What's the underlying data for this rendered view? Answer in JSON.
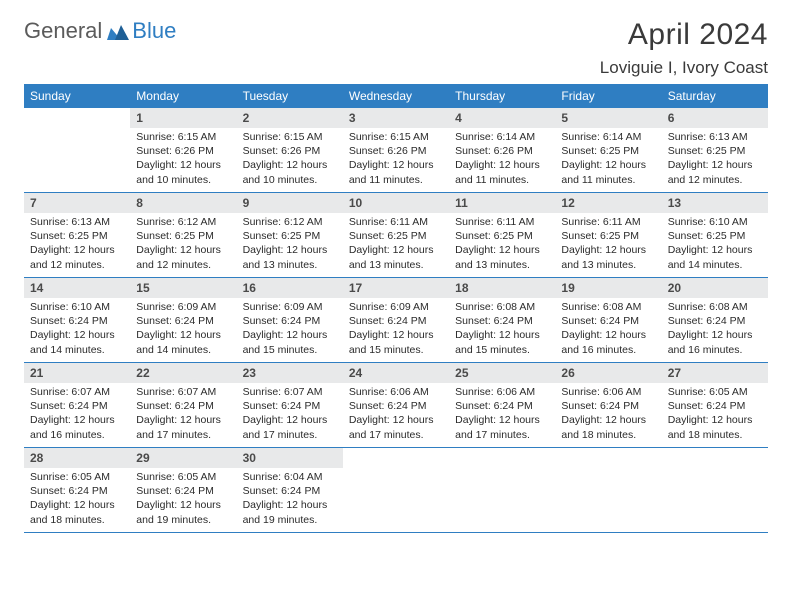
{
  "brand": {
    "part1": "General",
    "part2": "Blue",
    "color_gray": "#5b5b5b",
    "color_blue": "#2f7ec2"
  },
  "title": "April 2024",
  "location": "Loviguie I, Ivory Coast",
  "header_bg": "#2f7ec2",
  "header_text_color": "#ffffff",
  "daynum_bg": "#e8e9ea",
  "border_color": "#2f7ec2",
  "text_color": "#2b2b2b",
  "weekdays": [
    "Sunday",
    "Monday",
    "Tuesday",
    "Wednesday",
    "Thursday",
    "Friday",
    "Saturday"
  ],
  "weeks": [
    [
      {
        "n": "",
        "sunrise": "",
        "sunset": "",
        "daylight1": "",
        "daylight2": ""
      },
      {
        "n": "1",
        "sunrise": "Sunrise: 6:15 AM",
        "sunset": "Sunset: 6:26 PM",
        "daylight1": "Daylight: 12 hours",
        "daylight2": "and 10 minutes."
      },
      {
        "n": "2",
        "sunrise": "Sunrise: 6:15 AM",
        "sunset": "Sunset: 6:26 PM",
        "daylight1": "Daylight: 12 hours",
        "daylight2": "and 10 minutes."
      },
      {
        "n": "3",
        "sunrise": "Sunrise: 6:15 AM",
        "sunset": "Sunset: 6:26 PM",
        "daylight1": "Daylight: 12 hours",
        "daylight2": "and 11 minutes."
      },
      {
        "n": "4",
        "sunrise": "Sunrise: 6:14 AM",
        "sunset": "Sunset: 6:26 PM",
        "daylight1": "Daylight: 12 hours",
        "daylight2": "and 11 minutes."
      },
      {
        "n": "5",
        "sunrise": "Sunrise: 6:14 AM",
        "sunset": "Sunset: 6:25 PM",
        "daylight1": "Daylight: 12 hours",
        "daylight2": "and 11 minutes."
      },
      {
        "n": "6",
        "sunrise": "Sunrise: 6:13 AM",
        "sunset": "Sunset: 6:25 PM",
        "daylight1": "Daylight: 12 hours",
        "daylight2": "and 12 minutes."
      }
    ],
    [
      {
        "n": "7",
        "sunrise": "Sunrise: 6:13 AM",
        "sunset": "Sunset: 6:25 PM",
        "daylight1": "Daylight: 12 hours",
        "daylight2": "and 12 minutes."
      },
      {
        "n": "8",
        "sunrise": "Sunrise: 6:12 AM",
        "sunset": "Sunset: 6:25 PM",
        "daylight1": "Daylight: 12 hours",
        "daylight2": "and 12 minutes."
      },
      {
        "n": "9",
        "sunrise": "Sunrise: 6:12 AM",
        "sunset": "Sunset: 6:25 PM",
        "daylight1": "Daylight: 12 hours",
        "daylight2": "and 13 minutes."
      },
      {
        "n": "10",
        "sunrise": "Sunrise: 6:11 AM",
        "sunset": "Sunset: 6:25 PM",
        "daylight1": "Daylight: 12 hours",
        "daylight2": "and 13 minutes."
      },
      {
        "n": "11",
        "sunrise": "Sunrise: 6:11 AM",
        "sunset": "Sunset: 6:25 PM",
        "daylight1": "Daylight: 12 hours",
        "daylight2": "and 13 minutes."
      },
      {
        "n": "12",
        "sunrise": "Sunrise: 6:11 AM",
        "sunset": "Sunset: 6:25 PM",
        "daylight1": "Daylight: 12 hours",
        "daylight2": "and 13 minutes."
      },
      {
        "n": "13",
        "sunrise": "Sunrise: 6:10 AM",
        "sunset": "Sunset: 6:25 PM",
        "daylight1": "Daylight: 12 hours",
        "daylight2": "and 14 minutes."
      }
    ],
    [
      {
        "n": "14",
        "sunrise": "Sunrise: 6:10 AM",
        "sunset": "Sunset: 6:24 PM",
        "daylight1": "Daylight: 12 hours",
        "daylight2": "and 14 minutes."
      },
      {
        "n": "15",
        "sunrise": "Sunrise: 6:09 AM",
        "sunset": "Sunset: 6:24 PM",
        "daylight1": "Daylight: 12 hours",
        "daylight2": "and 14 minutes."
      },
      {
        "n": "16",
        "sunrise": "Sunrise: 6:09 AM",
        "sunset": "Sunset: 6:24 PM",
        "daylight1": "Daylight: 12 hours",
        "daylight2": "and 15 minutes."
      },
      {
        "n": "17",
        "sunrise": "Sunrise: 6:09 AM",
        "sunset": "Sunset: 6:24 PM",
        "daylight1": "Daylight: 12 hours",
        "daylight2": "and 15 minutes."
      },
      {
        "n": "18",
        "sunrise": "Sunrise: 6:08 AM",
        "sunset": "Sunset: 6:24 PM",
        "daylight1": "Daylight: 12 hours",
        "daylight2": "and 15 minutes."
      },
      {
        "n": "19",
        "sunrise": "Sunrise: 6:08 AM",
        "sunset": "Sunset: 6:24 PM",
        "daylight1": "Daylight: 12 hours",
        "daylight2": "and 16 minutes."
      },
      {
        "n": "20",
        "sunrise": "Sunrise: 6:08 AM",
        "sunset": "Sunset: 6:24 PM",
        "daylight1": "Daylight: 12 hours",
        "daylight2": "and 16 minutes."
      }
    ],
    [
      {
        "n": "21",
        "sunrise": "Sunrise: 6:07 AM",
        "sunset": "Sunset: 6:24 PM",
        "daylight1": "Daylight: 12 hours",
        "daylight2": "and 16 minutes."
      },
      {
        "n": "22",
        "sunrise": "Sunrise: 6:07 AM",
        "sunset": "Sunset: 6:24 PM",
        "daylight1": "Daylight: 12 hours",
        "daylight2": "and 17 minutes."
      },
      {
        "n": "23",
        "sunrise": "Sunrise: 6:07 AM",
        "sunset": "Sunset: 6:24 PM",
        "daylight1": "Daylight: 12 hours",
        "daylight2": "and 17 minutes."
      },
      {
        "n": "24",
        "sunrise": "Sunrise: 6:06 AM",
        "sunset": "Sunset: 6:24 PM",
        "daylight1": "Daylight: 12 hours",
        "daylight2": "and 17 minutes."
      },
      {
        "n": "25",
        "sunrise": "Sunrise: 6:06 AM",
        "sunset": "Sunset: 6:24 PM",
        "daylight1": "Daylight: 12 hours",
        "daylight2": "and 17 minutes."
      },
      {
        "n": "26",
        "sunrise": "Sunrise: 6:06 AM",
        "sunset": "Sunset: 6:24 PM",
        "daylight1": "Daylight: 12 hours",
        "daylight2": "and 18 minutes."
      },
      {
        "n": "27",
        "sunrise": "Sunrise: 6:05 AM",
        "sunset": "Sunset: 6:24 PM",
        "daylight1": "Daylight: 12 hours",
        "daylight2": "and 18 minutes."
      }
    ],
    [
      {
        "n": "28",
        "sunrise": "Sunrise: 6:05 AM",
        "sunset": "Sunset: 6:24 PM",
        "daylight1": "Daylight: 12 hours",
        "daylight2": "and 18 minutes."
      },
      {
        "n": "29",
        "sunrise": "Sunrise: 6:05 AM",
        "sunset": "Sunset: 6:24 PM",
        "daylight1": "Daylight: 12 hours",
        "daylight2": "and 19 minutes."
      },
      {
        "n": "30",
        "sunrise": "Sunrise: 6:04 AM",
        "sunset": "Sunset: 6:24 PM",
        "daylight1": "Daylight: 12 hours",
        "daylight2": "and 19 minutes."
      },
      {
        "n": "",
        "sunrise": "",
        "sunset": "",
        "daylight1": "",
        "daylight2": ""
      },
      {
        "n": "",
        "sunrise": "",
        "sunset": "",
        "daylight1": "",
        "daylight2": ""
      },
      {
        "n": "",
        "sunrise": "",
        "sunset": "",
        "daylight1": "",
        "daylight2": ""
      },
      {
        "n": "",
        "sunrise": "",
        "sunset": "",
        "daylight1": "",
        "daylight2": ""
      }
    ]
  ]
}
